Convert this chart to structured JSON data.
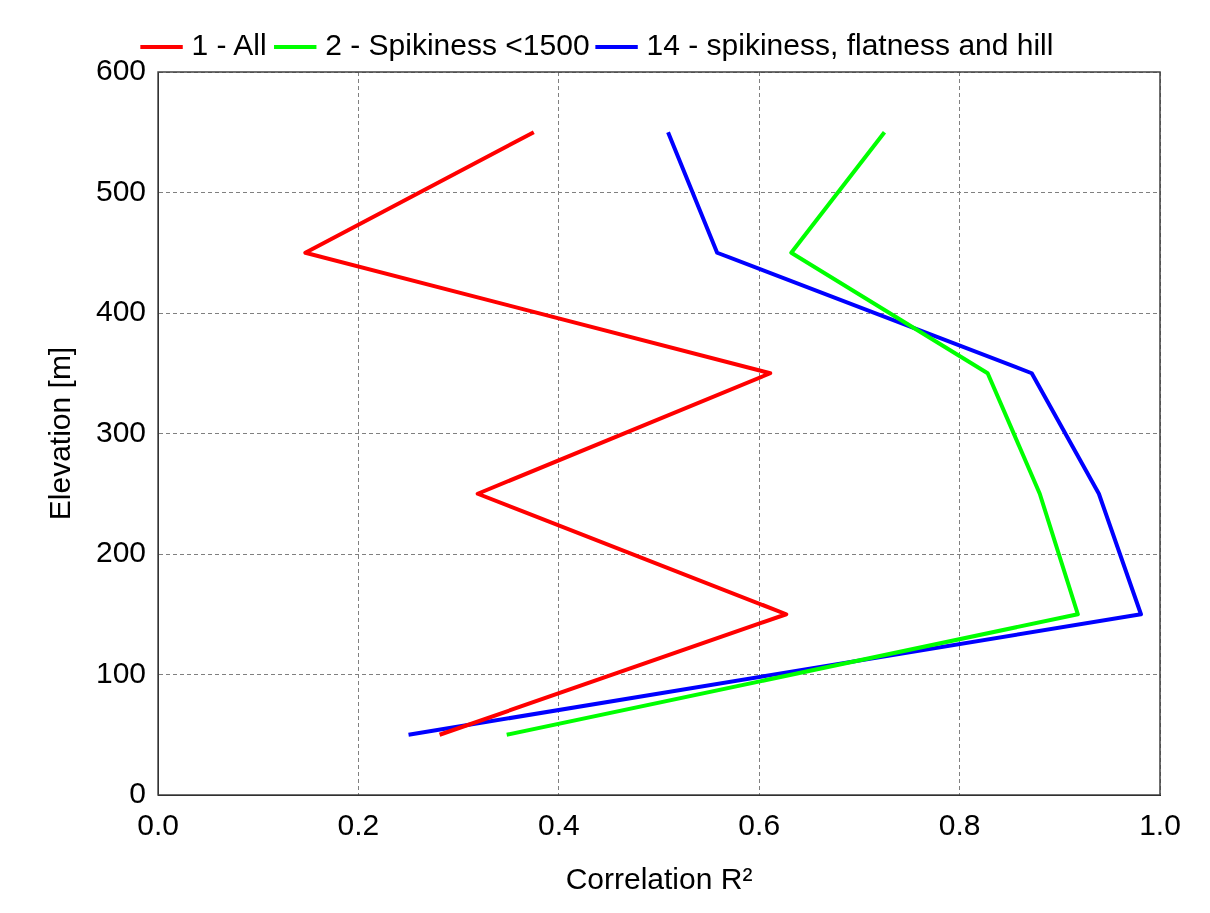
{
  "chart_data": {
    "type": "line",
    "xlabel": "Correlation R²",
    "ylabel": "Elevation [m]",
    "xlim": [
      0,
      1
    ],
    "xticks": [
      {
        "value": 0,
        "label": "0.0"
      },
      {
        "value": 0.2,
        "label": "0.2"
      },
      {
        "value": 0.4,
        "label": "0.4"
      },
      {
        "value": 0.6,
        "label": "0.6"
      },
      {
        "value": 0.8,
        "label": "0.8"
      },
      {
        "value": 1,
        "label": "1.0"
      }
    ],
    "ylim": [
      0,
      600
    ],
    "yticks": [
      0,
      100,
      200,
      300,
      400,
      500,
      600
    ],
    "grid": true,
    "legend": "top",
    "marker": "none",
    "line_style": "solid",
    "series": [
      {
        "name": "1 - All",
        "color": "#ff0000",
        "x": [
          0.375,
          0.147,
          0.611,
          0.319,
          0.627,
          0.281
        ],
        "values": [
          550,
          450,
          350,
          250,
          150,
          50
        ]
      },
      {
        "name": "2 - Spikiness <1500",
        "color": "#00ff00",
        "x": [
          0.725,
          0.632,
          0.828,
          0.88,
          0.918,
          0.348
        ],
        "values": [
          550,
          450,
          350,
          250,
          150,
          50
        ]
      },
      {
        "name": "14 - spikiness, flatness and hill",
        "color": "#0000ff",
        "x": [
          0.509,
          0.558,
          0.872,
          0.939,
          0.981,
          0.25
        ],
        "values": [
          550,
          450,
          350,
          250,
          150,
          50
        ]
      }
    ]
  }
}
